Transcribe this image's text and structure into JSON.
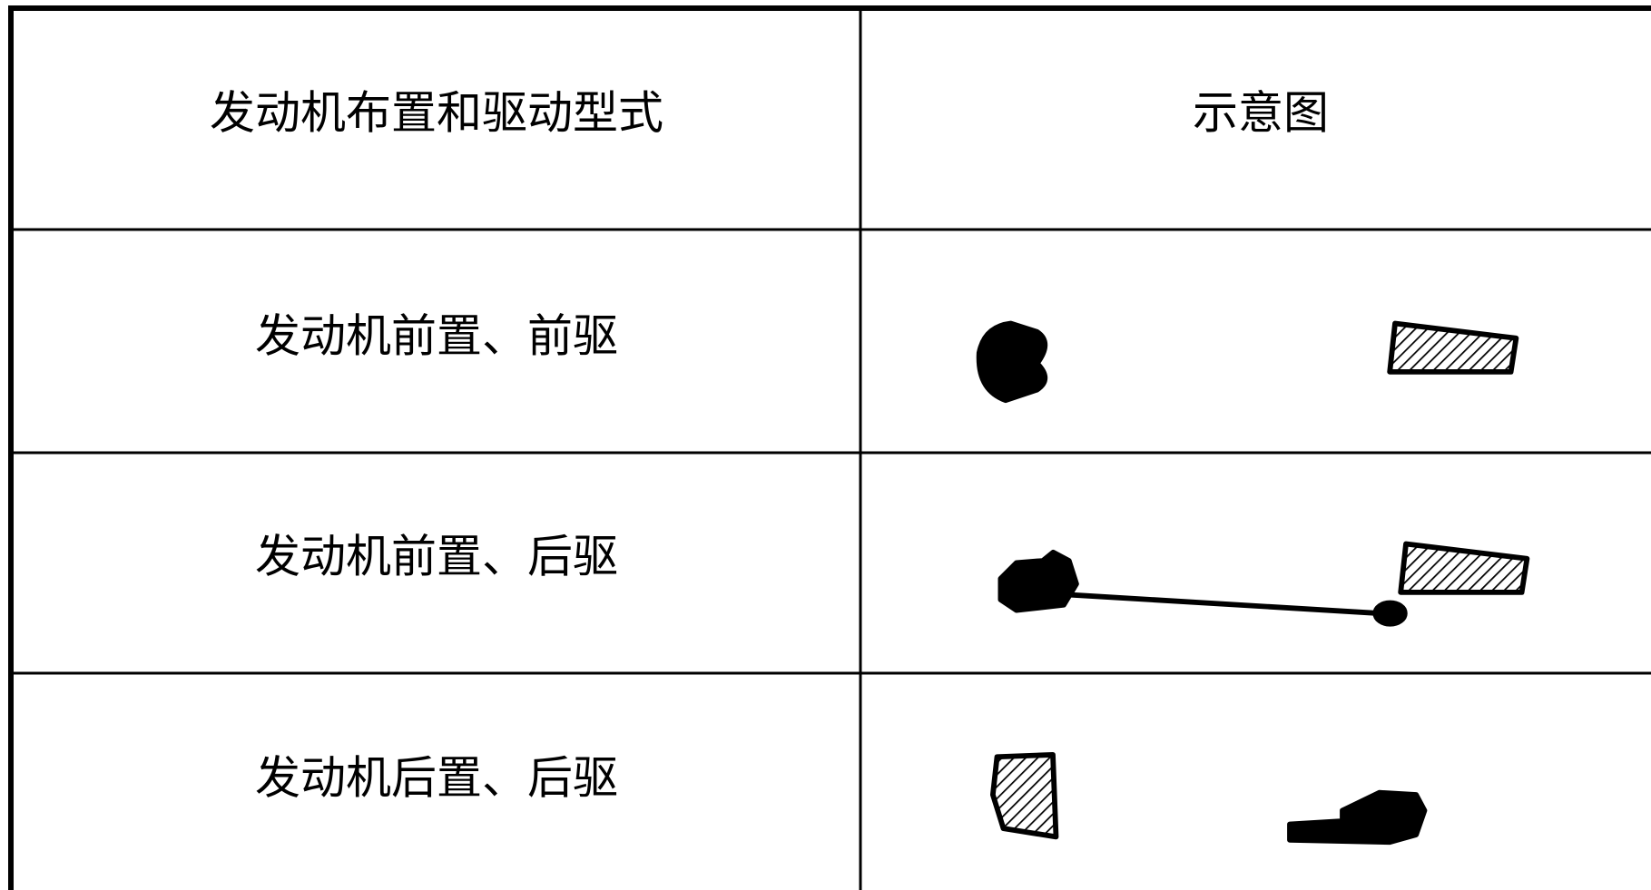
{
  "table": {
    "header": [
      "发动机布置和驱动型式",
      "示意图"
    ],
    "rows": [
      [
        "发动机前置、前驱"
      ],
      [
        "发动机前置、后驱"
      ],
      [
        "发动机后置、后驱"
      ]
    ]
  }
}
